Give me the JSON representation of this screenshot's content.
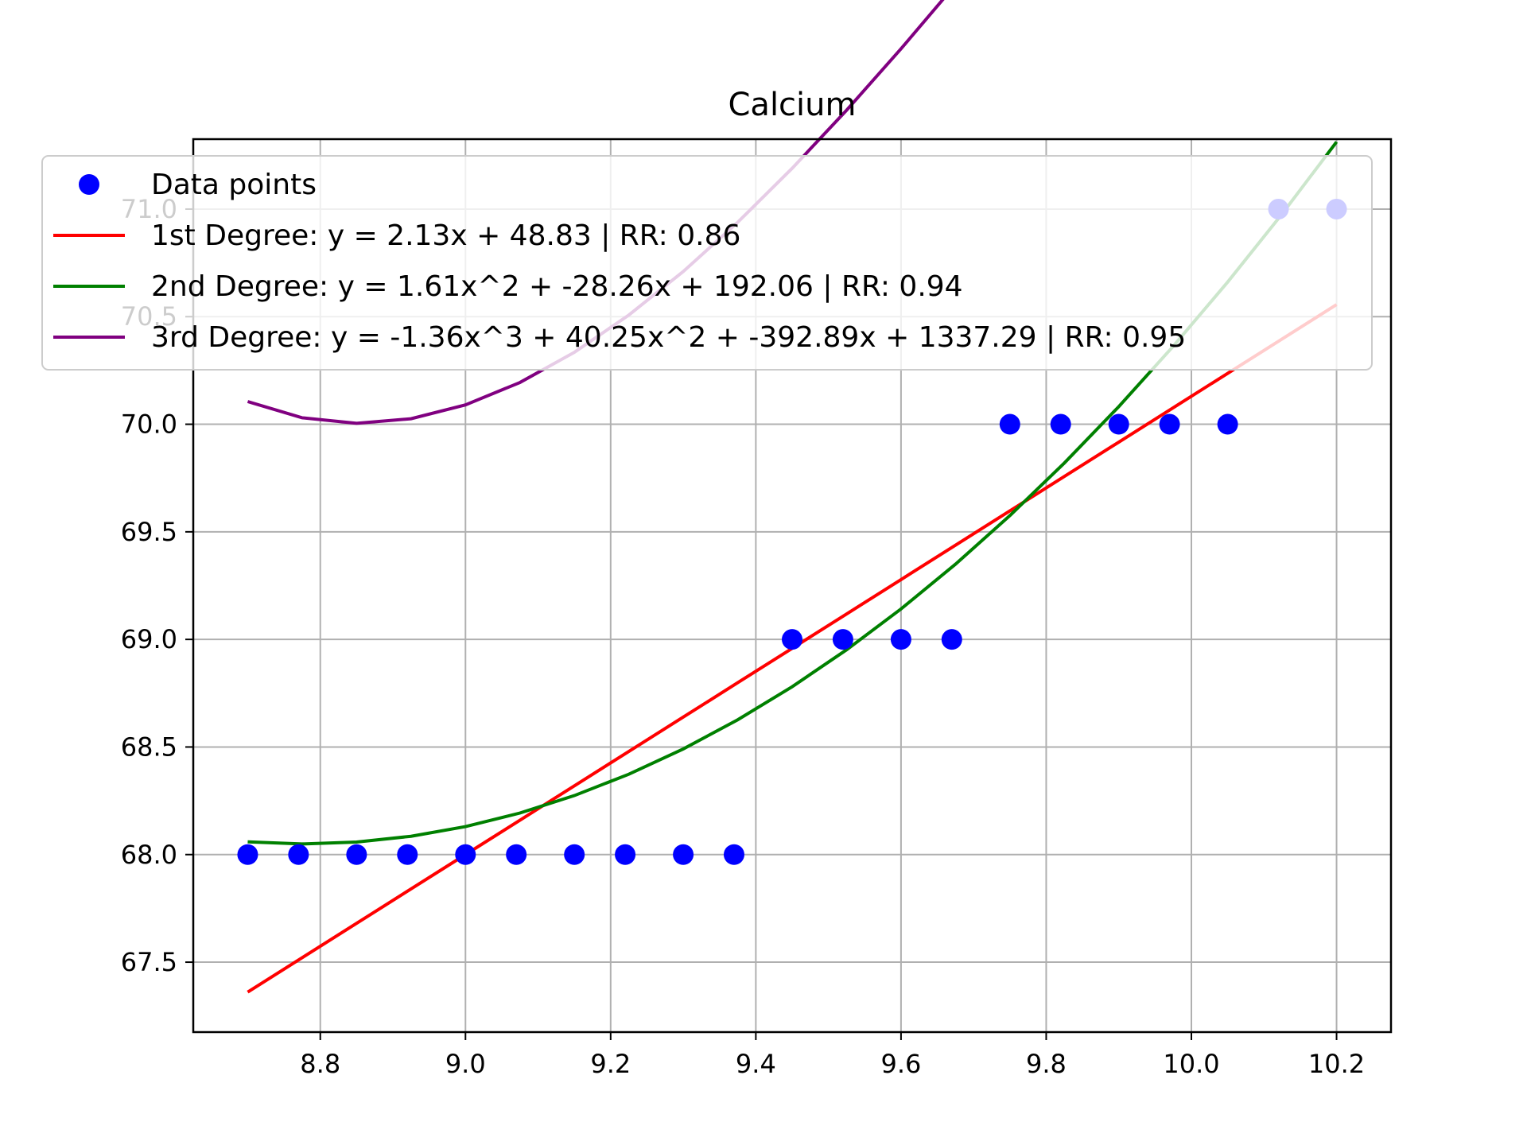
{
  "chart_data": {
    "type": "scatter",
    "title": "Calcium",
    "xlabel": "",
    "ylabel": "",
    "xlim": [
      8.625,
      10.275
    ],
    "ylim": [
      67.175,
      71.325
    ],
    "xticks": [
      8.8,
      9.0,
      9.2,
      9.4,
      9.6,
      9.8,
      10.0,
      10.2
    ],
    "xtick_labels": [
      "8.8",
      "9.0",
      "9.2",
      "9.4",
      "9.6",
      "9.8",
      "10.0",
      "10.2"
    ],
    "yticks": [
      67.5,
      68.0,
      68.5,
      69.0,
      69.5,
      70.0,
      70.5,
      71.0
    ],
    "ytick_labels": [
      "67.5",
      "68.0",
      "68.5",
      "69.0",
      "69.5",
      "70.0",
      "70.5",
      "71.0"
    ],
    "grid": true,
    "legend_position": "top-left",
    "points": {
      "name": "Data points",
      "color": "#0000ff",
      "x": [
        8.7,
        8.77,
        8.85,
        8.92,
        9.0,
        9.07,
        9.15,
        9.22,
        9.3,
        9.37,
        9.45,
        9.52,
        9.6,
        9.67,
        9.75,
        9.82,
        9.9,
        9.97,
        10.05,
        10.12,
        10.2
      ],
      "y": [
        68,
        68,
        68,
        68,
        68,
        68,
        68,
        68,
        68,
        68,
        69,
        69,
        69,
        69,
        70,
        70,
        70,
        70,
        70,
        71,
        71
      ]
    },
    "fits": [
      {
        "name": "1st Degree: y = 2.13x + 48.83 | RR: 0.86",
        "color": "#ff0000",
        "coefficients": [
          2.13,
          48.83
        ]
      },
      {
        "name": "2nd Degree: y = 1.61x^2 + -28.26x + 192.06 | RR: 0.94",
        "color": "#008000",
        "coefficients": [
          1.61,
          -28.26,
          192.06
        ]
      },
      {
        "name": "3rd Degree: y = -1.36x^3 + 40.25x^2 + -392.89x + 1337.29 | RR: 0.95",
        "color": "#800080",
        "coefficients": [
          -1.36,
          40.25,
          -392.89,
          1337.29
        ]
      }
    ]
  }
}
